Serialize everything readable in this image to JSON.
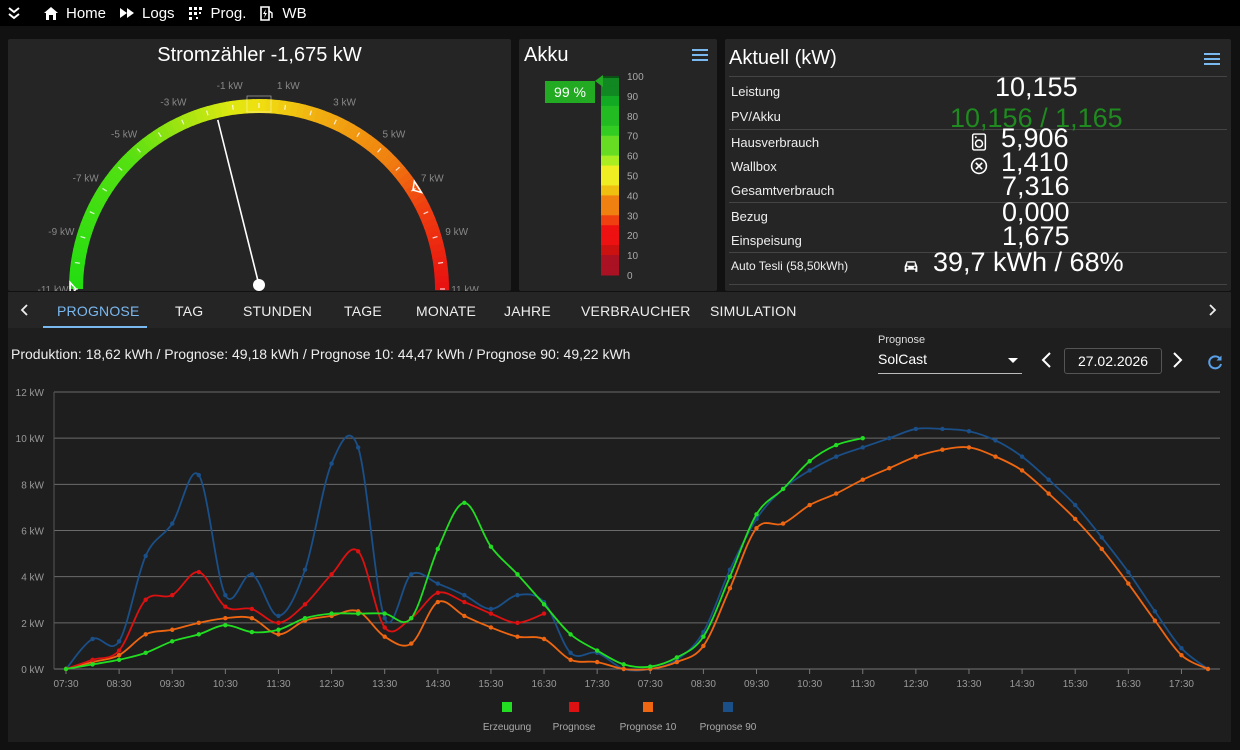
{
  "nav": {
    "items": [
      {
        "label": "",
        "icon": "expand-chevrons-icon"
      },
      {
        "label": "Home",
        "icon": "home-icon"
      },
      {
        "label": "Logs",
        "icon": "fast-forward-icon"
      },
      {
        "label": "Prog.",
        "icon": "grid-icon"
      },
      {
        "label": "WB",
        "icon": "ev-charger-icon"
      }
    ]
  },
  "meter": {
    "title": "Stromzähler -1,675 kW",
    "value": -1.675,
    "min": -11,
    "max": 11,
    "ticks": [
      "-11 kW",
      "-9 kW",
      "-7 kW",
      "-5 kW",
      "-3 kW",
      "-1 kW",
      "1 kW",
      "3 kW",
      "5 kW",
      "7 kW",
      "9 kW",
      "11 kW"
    ],
    "marker_values": [
      -11,
      7
    ]
  },
  "akku": {
    "title": "Akku",
    "percent_label": "99 %",
    "percent": 99,
    "scale": [
      "100",
      "90",
      "80",
      "70",
      "60",
      "50",
      "40",
      "30",
      "20",
      "10",
      "0"
    ]
  },
  "aktuell": {
    "title": "Aktuell (kW)",
    "rows": [
      {
        "label": "Leistung",
        "value": "10,155",
        "color": "#ffffff",
        "icon": ""
      },
      {
        "label": "PV/Akku",
        "value": "10,156 / 1,165",
        "color": "#1f8a1f",
        "icon": ""
      },
      {
        "label": "Hausverbrauch",
        "value": "5,906",
        "color": "#ffffff",
        "icon": "washing-machine-icon"
      },
      {
        "label": "Wallbox",
        "value": "1,410",
        "color": "#ffffff",
        "icon": "circle-x-icon"
      },
      {
        "label": "Gesamtverbrauch",
        "value": "7,316",
        "color": "#ffffff",
        "icon": ""
      },
      {
        "label": "Bezug",
        "value": "0,000",
        "color": "#ffffff",
        "icon": ""
      },
      {
        "label": "Einspeisung",
        "value": "1,675",
        "color": "#ffffff",
        "icon": ""
      },
      {
        "label": "Auto Tesli (58,50kWh)",
        "value": "39,7 kWh / 68%",
        "color": "#ffffff",
        "icon": "car-icon"
      }
    ]
  },
  "tabs": [
    "PROGNOSE",
    "TAG",
    "STUNDEN",
    "TAGE",
    "MONATE",
    "JAHRE",
    "VERBRAUCHER",
    "SIMULATION"
  ],
  "active_tab": "PROGNOSE",
  "prognose": {
    "summary": "Produktion: 18,62 kWh / Prognose: 49,18 kWh / Prognose 10: 44,47 kWh / Prognose 90: 49,22 kWh",
    "select_label": "Prognose",
    "select_value": "SolCast",
    "date": "27.02.2026"
  },
  "chart_data": {
    "type": "line",
    "x": [
      "07:30",
      "08:00",
      "08:30",
      "09:00",
      "09:30",
      "10:00",
      "10:30",
      "11:00",
      "11:30",
      "12:00",
      "12:30",
      "13:00",
      "13:30",
      "14:00",
      "14:30",
      "15:00",
      "15:30",
      "16:00",
      "16:30",
      "17:00",
      "17:30",
      "18:00",
      "07:30",
      "08:00",
      "08:30",
      "09:00",
      "09:30",
      "10:00",
      "10:30",
      "11:00",
      "11:30",
      "12:00",
      "12:30",
      "13:00",
      "13:30",
      "14:00",
      "14:30",
      "15:00",
      "15:30",
      "16:00",
      "16:30",
      "17:00",
      "17:30",
      "18:00"
    ],
    "tick_labels": [
      "07:30",
      "08:30",
      "09:30",
      "10:30",
      "11:30",
      "12:30",
      "13:30",
      "14:30",
      "15:30",
      "16:30",
      "17:30",
      "07:30",
      "08:30",
      "09:30",
      "10:30",
      "11:30",
      "12:30",
      "13:30",
      "14:30",
      "15:30",
      "16:30",
      "17:30"
    ],
    "ylabel": "",
    "ylim": [
      0,
      12
    ],
    "yticks": [
      "0 kW",
      "2 kW",
      "4 kW",
      "6 kW",
      "8 kW",
      "10 kW",
      "12 kW"
    ],
    "series": [
      {
        "name": "Erzeugung",
        "color": "#22dd22",
        "values": [
          0,
          0.2,
          0.4,
          0.7,
          1.2,
          1.5,
          1.9,
          1.6,
          1.7,
          2.2,
          2.4,
          2.4,
          2.4,
          2.2,
          5.2,
          7.2,
          5.3,
          4.1,
          2.8,
          1.5,
          0.8,
          0.2,
          0.1,
          0.5,
          1.4,
          4,
          6.7,
          7.8,
          9,
          9.7,
          10,
          null,
          null,
          null,
          null,
          null,
          null,
          null,
          null,
          null,
          null,
          null,
          null,
          null
        ]
      },
      {
        "name": "Prognose",
        "color": "#dd1111",
        "values": [
          0,
          0.4,
          0.8,
          3,
          3.2,
          4.2,
          2.7,
          2.6,
          2,
          2.8,
          4.1,
          5.1,
          1.8,
          2.2,
          3.3,
          2.9,
          2.4,
          2,
          2.4,
          null,
          null,
          null,
          null,
          null,
          null,
          null,
          null,
          null,
          null,
          null,
          null,
          null,
          null,
          null,
          null,
          null,
          null,
          null,
          null,
          null,
          null,
          null,
          null,
          null
        ]
      },
      {
        "name": "Prognose 10",
        "color": "#ee6611",
        "values": [
          0,
          0.3,
          0.6,
          1.5,
          1.7,
          2,
          2.2,
          2.2,
          1.5,
          2.1,
          2.3,
          2.5,
          1.4,
          1.1,
          2.9,
          2.3,
          1.8,
          1.4,
          1.3,
          0.4,
          0.3,
          0,
          0,
          0.3,
          1,
          3.5,
          6.1,
          6.3,
          7.1,
          7.6,
          8.2,
          8.7,
          9.2,
          9.5,
          9.6,
          9.2,
          8.6,
          7.6,
          6.5,
          5.2,
          3.7,
          2.1,
          0.6,
          0
        ]
      },
      {
        "name": "Prognose 90",
        "color": "#1a4f88",
        "values": [
          0,
          1.3,
          1.2,
          4.9,
          6.3,
          8.4,
          3.2,
          4.1,
          2.3,
          4.3,
          8.9,
          9.6,
          2.2,
          4.1,
          3.7,
          3.2,
          2.6,
          3.2,
          2.9,
          0.7,
          0.7,
          0,
          0,
          0.4,
          1.6,
          4.3,
          6.5,
          7.8,
          8.6,
          9.2,
          9.6,
          10,
          10.4,
          10.4,
          10.3,
          9.9,
          9.2,
          8.2,
          7.1,
          5.7,
          4.2,
          2.5,
          0.9,
          0
        ]
      }
    ],
    "legend": "bottom",
    "grid": true
  }
}
